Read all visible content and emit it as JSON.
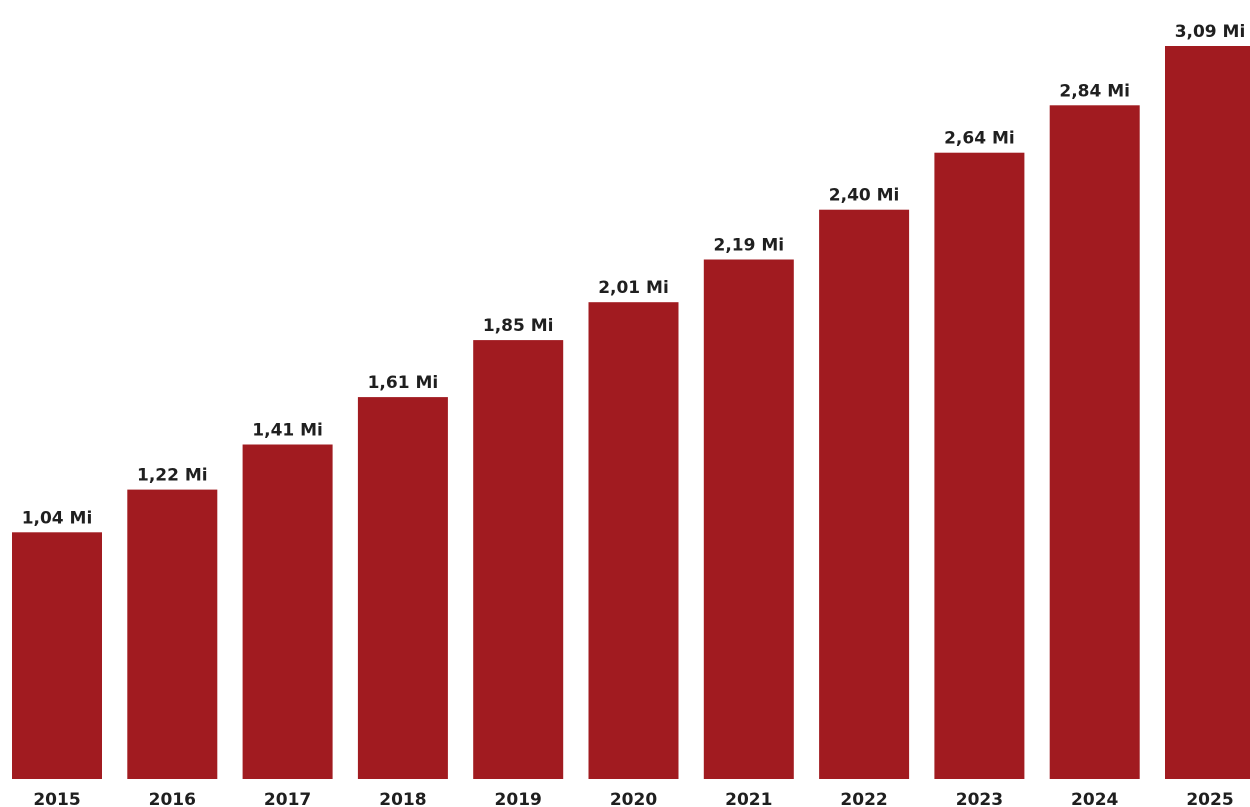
{
  "chart_data": {
    "type": "bar",
    "categories": [
      "2015",
      "2016",
      "2017",
      "2018",
      "2019",
      "2020",
      "2021",
      "2022",
      "2023",
      "2024",
      "2025"
    ],
    "values": [
      1.04,
      1.22,
      1.41,
      1.61,
      1.85,
      2.01,
      2.19,
      2.4,
      2.64,
      2.84,
      3.09
    ],
    "data_labels": [
      "1,04 Mi",
      "1,22 Mi",
      "1,41 Mi",
      "1,61 Mi",
      "1,85 Mi",
      "2,01 Mi",
      "2,19 Mi",
      "2,40 Mi",
      "2,64 Mi",
      "2,84 Mi",
      "3,09 Mi"
    ],
    "title": "",
    "xlabel": "",
    "ylabel": "",
    "ylim": [
      0,
      3.09
    ],
    "grid": false,
    "legend": "none",
    "bar_color": "#a11b20"
  }
}
